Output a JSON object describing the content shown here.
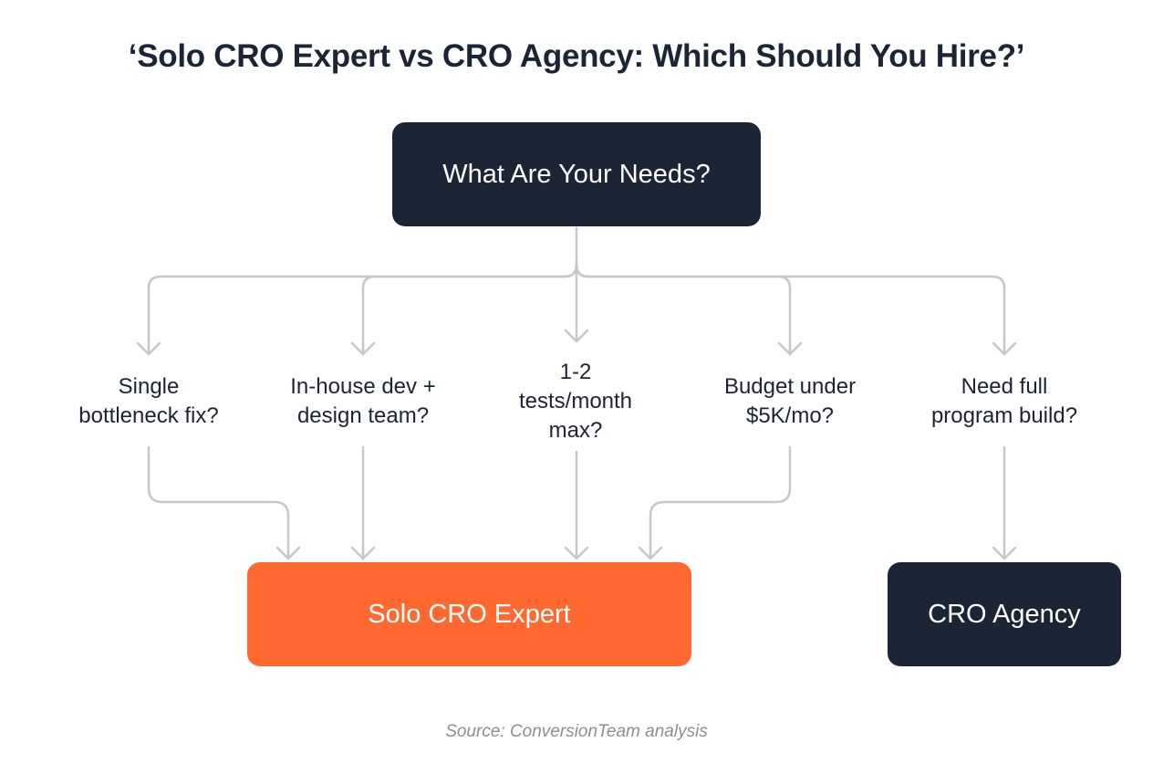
{
  "title": "‘Solo CRO Expert vs CRO Agency: Which Should You Hire?’",
  "root": {
    "label": "What Are Your Needs?",
    "color": "#1b2536"
  },
  "questions": [
    {
      "label": "Single\nbottleneck fix?",
      "leads_to": "Solo CRO Expert"
    },
    {
      "label": "In-house dev +\ndesign team?",
      "leads_to": "Solo CRO Expert"
    },
    {
      "label": "1-2\ntests/month\nmax?",
      "leads_to": "Solo CRO Expert"
    },
    {
      "label": "Budget under\n$5K/mo?",
      "leads_to": "Solo CRO Expert"
    },
    {
      "label": "Need full\nprogram build?",
      "leads_to": "CRO Agency"
    }
  ],
  "outcomes": {
    "solo": {
      "label": "Solo CRO Expert",
      "color": "#ff6930"
    },
    "agency": {
      "label": "CRO Agency",
      "color": "#1b2536"
    }
  },
  "source": "Source: ConversionTeam analysis",
  "connector_color": "#c5c7cb"
}
